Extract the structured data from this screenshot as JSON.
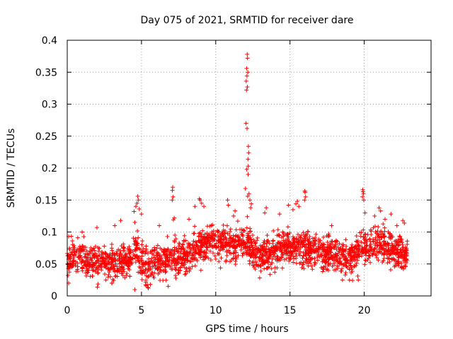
{
  "chart_data": {
    "type": "scatter",
    "title": "Day 075 of 2021, SRMTID for receiver dare",
    "xlabel": "GPS time / hours",
    "ylabel": "SRMTID / TECUs",
    "xlim": [
      0,
      24.5
    ],
    "ylim": [
      0,
      0.4
    ],
    "xticks": [
      0,
      5,
      10,
      15,
      20
    ],
    "xtick_labels": [
      "0",
      "5",
      "10",
      "15",
      "20"
    ],
    "yticks": [
      0,
      0.05,
      0.1,
      0.15,
      0.2,
      0.25,
      0.3,
      0.35,
      0.4
    ],
    "ytick_labels": [
      "0",
      "0.05",
      "0.1",
      "0.15",
      "0.2",
      "0.25",
      "0.3",
      "0.35",
      "0.4"
    ],
    "grid": true,
    "marker": "+",
    "marker_color": "#ff0000",
    "series": [
      {
        "name": "SRMTID",
        "points_per_hour": 100,
        "hour_range": [
          0,
          22.9
        ],
        "baseline": [
          [
            0,
            0.058
          ],
          [
            1,
            0.06
          ],
          [
            2,
            0.055
          ],
          [
            3,
            0.05
          ],
          [
            4,
            0.052
          ],
          [
            4.6,
            0.075
          ],
          [
            5,
            0.055
          ],
          [
            5.5,
            0.045
          ],
          [
            6,
            0.052
          ],
          [
            7,
            0.058
          ],
          [
            8,
            0.063
          ],
          [
            9,
            0.08
          ],
          [
            10,
            0.083
          ],
          [
            11,
            0.08
          ],
          [
            12,
            0.085
          ],
          [
            12.5,
            0.07
          ],
          [
            13,
            0.06
          ],
          [
            14,
            0.068
          ],
          [
            15,
            0.078
          ],
          [
            16,
            0.075
          ],
          [
            17,
            0.068
          ],
          [
            18,
            0.065
          ],
          [
            19,
            0.058
          ],
          [
            20,
            0.075
          ],
          [
            21,
            0.085
          ],
          [
            22,
            0.07
          ],
          [
            22.9,
            0.065
          ]
        ],
        "spread": 0.018,
        "outliers": [
          [
            12.12,
            0.378
          ],
          [
            12.14,
            0.372
          ],
          [
            12.08,
            0.356
          ],
          [
            12.16,
            0.35
          ],
          [
            12.1,
            0.344
          ],
          [
            12.05,
            0.336
          ],
          [
            12.13,
            0.327
          ],
          [
            12.07,
            0.322
          ],
          [
            12.04,
            0.27
          ],
          [
            12.11,
            0.262
          ],
          [
            12.2,
            0.234
          ],
          [
            12.22,
            0.224
          ],
          [
            12.17,
            0.214
          ],
          [
            12.19,
            0.203
          ],
          [
            12.09,
            0.198
          ],
          [
            12.18,
            0.19
          ],
          [
            12.24,
            0.16
          ],
          [
            12.0,
            0.168
          ],
          [
            12.15,
            0.156
          ],
          [
            12.3,
            0.15
          ],
          [
            12.4,
            0.144
          ],
          [
            12.35,
            0.138
          ],
          [
            7.1,
            0.17
          ],
          [
            7.08,
            0.165
          ],
          [
            7.12,
            0.155
          ],
          [
            7.07,
            0.15
          ],
          [
            7.2,
            0.122
          ],
          [
            7.15,
            0.119
          ],
          [
            4.75,
            0.156
          ],
          [
            4.8,
            0.15
          ],
          [
            4.7,
            0.145
          ],
          [
            4.62,
            0.14
          ],
          [
            4.5,
            0.132
          ],
          [
            4.85,
            0.136
          ],
          [
            5.0,
            0.128
          ],
          [
            4.55,
            0.115
          ],
          [
            16.0,
            0.164
          ],
          [
            16.02,
            0.162
          ],
          [
            16.05,
            0.155
          ],
          [
            15.98,
            0.15
          ],
          [
            15.5,
            0.148
          ],
          [
            15.4,
            0.144
          ],
          [
            15.2,
            0.135
          ],
          [
            14.9,
            0.142
          ],
          [
            15.6,
            0.14
          ],
          [
            19.9,
            0.166
          ],
          [
            19.92,
            0.163
          ],
          [
            19.95,
            0.16
          ],
          [
            19.88,
            0.155
          ],
          [
            19.97,
            0.15
          ],
          [
            20.05,
            0.13
          ],
          [
            8.9,
            0.152
          ],
          [
            8.95,
            0.15
          ],
          [
            9.05,
            0.145
          ],
          [
            9.2,
            0.14
          ],
          [
            8.6,
            0.14
          ],
          [
            8.2,
            0.12
          ],
          [
            10.8,
            0.15
          ],
          [
            10.85,
            0.142
          ],
          [
            11.3,
            0.133
          ],
          [
            11.2,
            0.125
          ],
          [
            13.4,
            0.138
          ],
          [
            13.3,
            0.13
          ],
          [
            14.3,
            0.128
          ],
          [
            17.8,
            0.11
          ],
          [
            21.0,
            0.138
          ],
          [
            21.1,
            0.133
          ],
          [
            20.7,
            0.125
          ],
          [
            21.4,
            0.12
          ],
          [
            22.6,
            0.118
          ],
          [
            22.7,
            0.114
          ],
          [
            22.2,
            0.11
          ],
          [
            21.8,
            0.128
          ],
          [
            0.1,
            0.093
          ],
          [
            1.0,
            0.1
          ],
          [
            3.2,
            0.11
          ],
          [
            3.6,
            0.118
          ],
          [
            2.0,
            0.107
          ],
          [
            6.2,
            0.11
          ],
          [
            2.6,
            0.025
          ],
          [
            3.0,
            0.02
          ],
          [
            4.55,
            0.01
          ],
          [
            5.6,
            0.018
          ],
          [
            6.8,
            0.015
          ],
          [
            0.1,
            0.02
          ],
          [
            0.05,
            0.032
          ],
          [
            19.6,
            0.025
          ],
          [
            9.0,
            0.04
          ]
        ]
      }
    ]
  }
}
